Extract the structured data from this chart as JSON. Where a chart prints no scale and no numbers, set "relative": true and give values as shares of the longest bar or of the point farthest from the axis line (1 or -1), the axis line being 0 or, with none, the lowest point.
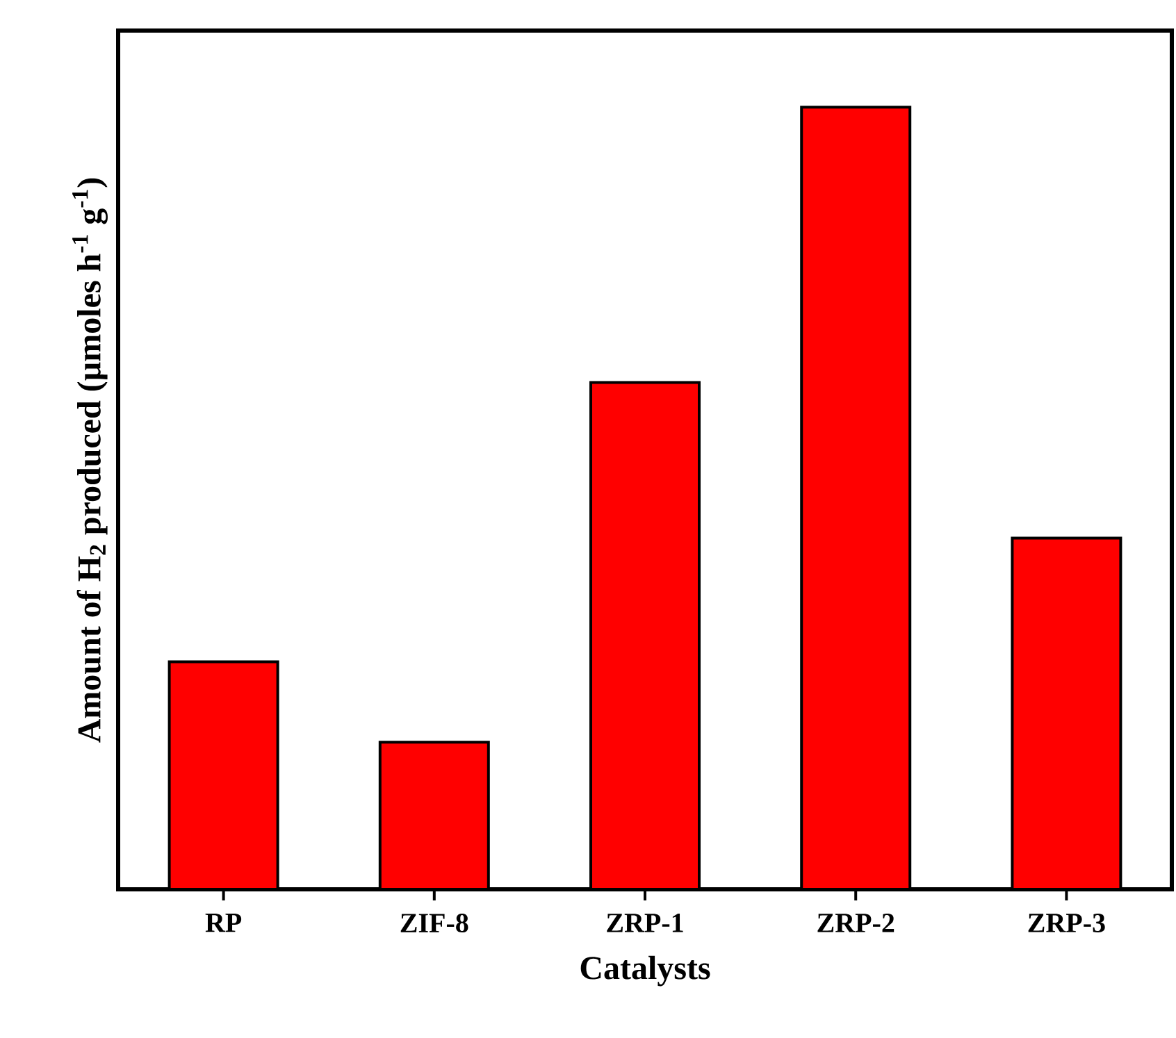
{
  "chart_data": {
    "type": "bar",
    "xlabel": "Catalysts",
    "ylabel": "Amount of H$_{2}$ produced (µmoles h$^{-1}$ g$^{-1}$)",
    "relative": true,
    "categories": [
      "RP",
      "ZIF-8",
      "ZRP-1",
      "ZRP-2",
      "ZRP-3"
    ],
    "values": [
      0.291,
      0.188,
      0.648,
      1,
      0.449
    ],
    "color": "#ff0000"
  }
}
